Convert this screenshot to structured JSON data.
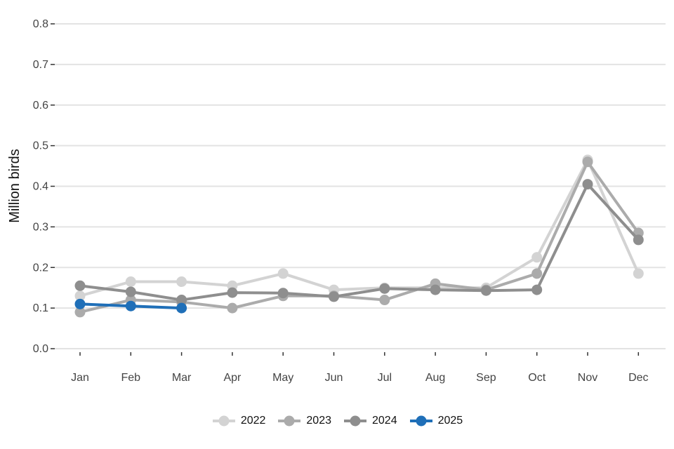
{
  "chart_data": {
    "type": "line",
    "title": "",
    "xlabel": "",
    "ylabel": "Million birds",
    "categories": [
      "Jan",
      "Feb",
      "Mar",
      "Apr",
      "May",
      "Jun",
      "Jul",
      "Aug",
      "Sep",
      "Oct",
      "Nov",
      "Dec"
    ],
    "y_ticks": [
      "0.0",
      "0.1",
      "0.2",
      "0.3",
      "0.4",
      "0.5",
      "0.6",
      "0.7",
      "0.8"
    ],
    "ylim": [
      0,
      0.8
    ],
    "grid": "horizontal",
    "legend_position": "bottom",
    "series": [
      {
        "name": "2022",
        "color": "#d3d3d3",
        "values": [
          0.13,
          0.165,
          0.165,
          0.155,
          0.185,
          0.145,
          0.15,
          0.15,
          0.15,
          0.225,
          0.465,
          0.185
        ]
      },
      {
        "name": "2023",
        "color": "#ababab",
        "values": [
          0.09,
          0.12,
          0.115,
          0.1,
          0.13,
          0.13,
          0.12,
          0.16,
          0.145,
          0.185,
          0.46,
          0.285
        ]
      },
      {
        "name": "2024",
        "color": "#8e8e8e",
        "values": [
          0.155,
          0.14,
          0.12,
          0.138,
          0.137,
          0.128,
          0.148,
          0.145,
          0.143,
          0.145,
          0.405,
          0.268
        ]
      },
      {
        "name": "2025",
        "color": "#1f6fb8",
        "values": [
          0.11,
          0.105,
          0.1,
          null,
          null,
          null,
          null,
          null,
          null,
          null,
          null,
          null
        ]
      }
    ]
  }
}
